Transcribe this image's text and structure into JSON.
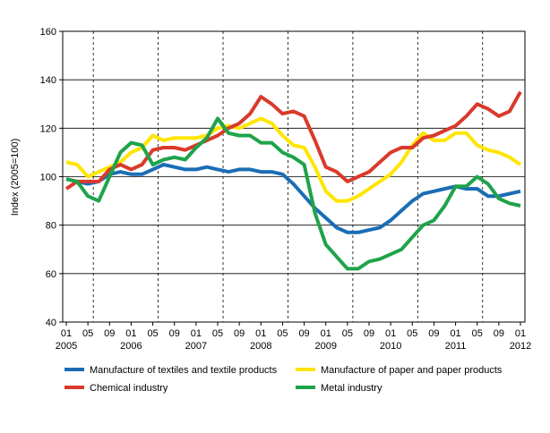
{
  "chart_data": {
    "type": "line",
    "y_label": "Index (2005=100)",
    "categories": [
      "01",
      null,
      "05",
      null,
      "09",
      null,
      "01",
      null,
      "05",
      null,
      "09",
      null,
      "01",
      null,
      "05",
      null,
      "09",
      null,
      "01",
      null,
      "05",
      null,
      "09",
      null,
      "01",
      null,
      "05",
      null,
      "09",
      null,
      "01",
      null,
      "05",
      null,
      "09",
      null,
      "01",
      null,
      "05",
      null,
      "09",
      null,
      "01"
    ],
    "years": [
      "2005",
      "2006",
      "2007",
      "2008",
      "2009",
      "2010",
      "2011",
      "2012"
    ],
    "ylim": [
      40,
      160
    ],
    "yticks": [
      40,
      60,
      80,
      100,
      120,
      140,
      160
    ],
    "grid": true,
    "series": [
      {
        "name": "Manufacture of textiles and textile products",
        "color": "#1a6db5",
        "values": [
          99,
          98,
          97,
          98,
          101,
          102,
          101,
          101,
          103,
          105,
          104,
          103,
          103,
          104,
          103,
          102,
          103,
          103,
          102,
          102,
          101,
          97,
          92,
          87,
          83,
          79,
          77,
          77,
          78,
          79,
          82,
          86,
          90,
          93,
          94,
          95,
          96,
          95,
          95,
          92,
          92,
          93,
          94
        ]
      },
      {
        "name": "Manufacture of paper and paper products",
        "color": "#ffe500",
        "values": [
          106,
          105,
          100,
          102,
          104,
          106,
          110,
          112,
          117,
          115,
          116,
          116,
          116,
          117,
          120,
          121,
          120,
          122,
          124,
          122,
          117,
          113,
          112,
          104,
          94,
          90,
          90,
          92,
          95,
          98,
          101,
          106,
          113,
          118,
          115,
          115,
          118,
          118,
          113,
          111,
          110,
          108,
          105
        ]
      },
      {
        "name": "Chemical industry",
        "color": "#d93a2b",
        "values": [
          95,
          98,
          98,
          98,
          103,
          105,
          103,
          105,
          111,
          112,
          112,
          111,
          113,
          115,
          117,
          120,
          122,
          126,
          133,
          130,
          126,
          127,
          125,
          115,
          104,
          102,
          98,
          100,
          102,
          106,
          110,
          112,
          112,
          116,
          117,
          119,
          121,
          125,
          130,
          128,
          125,
          127,
          135
        ]
      },
      {
        "name": "Metal industry",
        "color": "#1fa34a",
        "values": [
          99,
          98,
          92,
          90,
          100,
          110,
          114,
          113,
          105,
          107,
          108,
          107,
          112,
          116,
          124,
          118,
          117,
          117,
          114,
          114,
          110,
          108,
          105,
          85,
          72,
          67,
          62,
          62,
          65,
          66,
          68,
          70,
          75,
          80,
          82,
          88,
          96,
          96,
          100,
          97,
          91,
          89,
          88
        ]
      }
    ]
  }
}
